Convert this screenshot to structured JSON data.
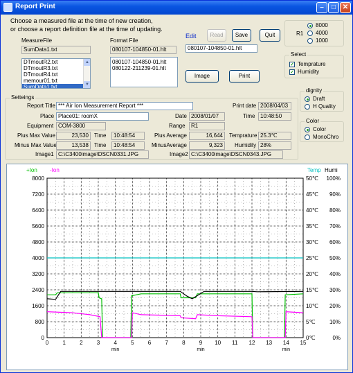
{
  "window": {
    "title": "Report Print"
  },
  "instructions": {
    "line1": "Choose a measured file at the time of new creation,",
    "line2": "or choose a report definition file at the time of updating."
  },
  "measure_file": {
    "label": "MeasureFile",
    "value": "SumData1.txt",
    "items": [
      "DTmoutR2.txt",
      "DTmoutR3.txt",
      "DTmoutR4.txt",
      "memour01.txt",
      "SumData1.txt"
    ],
    "selected": "SumData1.txt"
  },
  "format_file": {
    "label": "Format File",
    "value": "080107-104850-01.hlt",
    "items": [
      "080107-104850-01.hlt",
      "080122-211239-01.hlt"
    ]
  },
  "edit": {
    "label": "Edit",
    "value": "080107-104850-01.hlt"
  },
  "buttons": {
    "read": "Read",
    "save": "Save",
    "quit": "Quit",
    "image": "Image",
    "print": "Print"
  },
  "r1": {
    "label": "R1",
    "options": [
      "8000",
      "4000",
      "1000"
    ],
    "selected": "8000"
  },
  "select": {
    "title": "Select",
    "temperature": "Temprature",
    "humidity": "Humidity"
  },
  "dignity": {
    "title": "dignity",
    "options": [
      "Draft",
      "H Quality"
    ],
    "selected": "Draft"
  },
  "color": {
    "title": "Color",
    "options": [
      "Color",
      "MonoChro"
    ],
    "selected": "Color"
  },
  "settings": {
    "title": "Setteings",
    "report_title_label": "Report Title",
    "report_title": "*** Air Ion Measurement Report ***",
    "print_date_label": "Print date",
    "print_date": "2008/04/03",
    "place_label": "Place",
    "place": "Place01: roomX",
    "date_label": "Date",
    "date": "2008/01/07",
    "time_label": "Time",
    "time": "10:48:50",
    "equipment_label": "Equipment",
    "equipment": "COM-3800",
    "range_label": "Range",
    "range": "R1",
    "plus_max_label": "Plus Max Value",
    "plus_max": "23,530",
    "plus_max_time_label": "Time",
    "plus_max_time": "10:48:54",
    "plus_avg_label": "Plus Average",
    "plus_avg": "16,644",
    "temp_label": "Temprature",
    "temp": "25.3℃",
    "minus_max_label": "Minus Max Value",
    "minus_max": "13,538",
    "minus_max_time_label": "Time",
    "minus_max_time": "10:48:54",
    "minus_avg_label": "MinusAverage",
    "minus_avg": "9,323",
    "humidity_label": "Humidity",
    "humidity": "28%",
    "image1_label": "Image1",
    "image1": "C:\\C3400image\\DSCN0331.JPG",
    "image2_label": "Image2",
    "image2": "C:\\C3400image\\DSCN0343.JPG"
  },
  "colors": {
    "plus": "#00c000",
    "minus": "#ff00ff",
    "temp": "#000000",
    "humi": "#00c0c0"
  },
  "chart_data": {
    "type": "line",
    "legend_left": [
      "+Ion",
      "-Ion"
    ],
    "legend_right": [
      "Temp",
      "Humi"
    ],
    "xlabel": "min",
    "x_ticks": [
      "0",
      "1",
      "2",
      "3",
      "4",
      "5",
      "6",
      "7",
      "8",
      "9",
      "10",
      "11",
      "12",
      "13",
      "14",
      "15"
    ],
    "xlim": [
      0,
      15
    ],
    "y_left_ticks": [
      "8000",
      "7200",
      "6400",
      "5600",
      "4800",
      "4000",
      "3200",
      "2400",
      "1600",
      "800",
      "0"
    ],
    "ylim_left": [
      0,
      8000
    ],
    "y_temp_ticks": [
      "50℃",
      "45℃",
      "40℃",
      "35℃",
      "30℃",
      "25℃",
      "20℃",
      "15℃",
      "10℃",
      "5℃",
      "0℃"
    ],
    "y_humi_ticks": [
      "100%",
      "90%",
      "80%",
      "70%",
      "60%",
      "50%",
      "40%",
      "30%",
      "20%",
      "10%",
      "0%"
    ],
    "grid": true,
    "series": [
      {
        "name": "+Ion",
        "color": "#00c000",
        "points": [
          [
            0,
            2150
          ],
          [
            0.5,
            2150
          ],
          [
            0.6,
            2250
          ],
          [
            3.0,
            2250
          ],
          [
            3.05,
            2000
          ],
          [
            3.2,
            1950
          ],
          [
            3.25,
            0
          ],
          [
            4.9,
            0
          ],
          [
            4.95,
            2100
          ],
          [
            5.5,
            2200
          ],
          [
            7.8,
            2200
          ],
          [
            7.85,
            2000
          ],
          [
            8.7,
            2000
          ],
          [
            8.8,
            2200
          ],
          [
            12.0,
            2200
          ],
          [
            12.05,
            0
          ],
          [
            13.9,
            0
          ],
          [
            13.95,
            2150
          ],
          [
            15,
            2200
          ]
        ]
      },
      {
        "name": "-Ion",
        "color": "#ff00ff",
        "points": [
          [
            0,
            1300
          ],
          [
            1.5,
            1250
          ],
          [
            2.5,
            1150
          ],
          [
            3.1,
            1050
          ],
          [
            3.2,
            0
          ],
          [
            4.95,
            0
          ],
          [
            5.0,
            1250
          ],
          [
            5.5,
            1150
          ],
          [
            7.8,
            1100
          ],
          [
            7.85,
            1000
          ],
          [
            8.7,
            950
          ],
          [
            8.8,
            1150
          ],
          [
            10.0,
            1100
          ],
          [
            12.0,
            1050
          ],
          [
            12.05,
            0
          ],
          [
            13.95,
            0
          ],
          [
            14.0,
            1300
          ],
          [
            15,
            1250
          ]
        ]
      },
      {
        "name": "Temp",
        "color": "#000000",
        "axis": "temp",
        "points": [
          [
            0,
            12.2
          ],
          [
            0.5,
            12.0
          ],
          [
            0.8,
            14.5
          ],
          [
            7.8,
            14.5
          ],
          [
            8.2,
            13.0
          ],
          [
            8.5,
            12.2
          ],
          [
            8.9,
            13.5
          ],
          [
            9.2,
            14.5
          ],
          [
            12.0,
            14.5
          ],
          [
            12.3,
            14.4
          ],
          [
            15,
            14.5
          ]
        ]
      },
      {
        "name": "Humi",
        "color": "#00c0c0",
        "axis": "humi",
        "points": [
          [
            0,
            50
          ],
          [
            15,
            50
          ]
        ]
      }
    ]
  }
}
